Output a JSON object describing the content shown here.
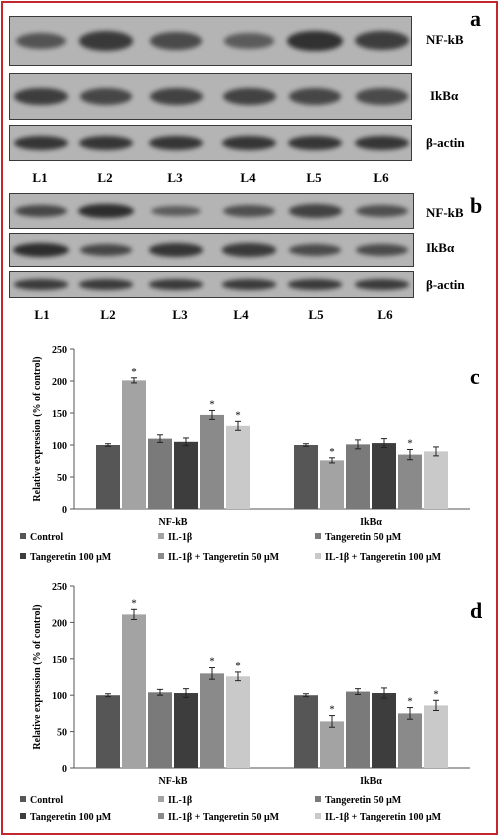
{
  "panel_letters": [
    "a",
    "b",
    "c",
    "d"
  ],
  "blots": {
    "a": {
      "rows": [
        {
          "label": "NF-kB",
          "intensity": [
            0.55,
            0.85,
            0.65,
            0.45,
            0.95,
            0.8
          ]
        },
        {
          "label": "IkBα",
          "intensity": [
            0.8,
            0.7,
            0.75,
            0.75,
            0.7,
            0.65
          ]
        },
        {
          "label": "β-actin",
          "intensity": [
            0.9,
            0.9,
            0.9,
            0.9,
            0.9,
            0.9
          ]
        }
      ],
      "lanes": [
        "L1",
        "L2",
        "L3",
        "L4",
        "L5",
        "L6"
      ]
    },
    "b": {
      "rows": [
        {
          "label": "NF-kB",
          "intensity": [
            0.7,
            1.0,
            0.45,
            0.6,
            0.75,
            0.6
          ]
        },
        {
          "label": "IkBα",
          "intensity": [
            1.0,
            0.7,
            0.9,
            0.85,
            0.65,
            0.65
          ]
        },
        {
          "label": "β-actin",
          "intensity": [
            0.85,
            0.85,
            0.85,
            0.85,
            0.85,
            0.85
          ]
        }
      ],
      "lanes": [
        "L1",
        "L2",
        "L3",
        "L4",
        "L5",
        "L6"
      ]
    }
  },
  "legend_entries": [
    "Control",
    "IL-1β",
    "Tangeretin 50 μM",
    "Tangeretin 100 μM",
    "IL-1β + Tangeretin 50 μM",
    "IL-1β + Tangeretin 100 μM"
  ],
  "colors": [
    "#565656",
    "#a3a3a3",
    "#7a7a7a",
    "#3d3d3d",
    "#8a8a8a",
    "#c9c9c9"
  ],
  "chart_data": [
    {
      "panel": "c",
      "type": "bar",
      "categories": [
        "NF-kB",
        "IkBα"
      ],
      "ylabel": "Relative expression (% of control)",
      "ylim": [
        0,
        250
      ],
      "yticks": [
        0,
        50,
        100,
        150,
        200,
        250
      ],
      "series": [
        {
          "name": "Control",
          "values": [
            100,
            100
          ],
          "errors": [
            2,
            2
          ],
          "significant": [
            false,
            false
          ]
        },
        {
          "name": "IL-1β",
          "values": [
            201,
            76
          ],
          "errors": [
            4,
            4
          ],
          "significant": [
            true,
            true
          ]
        },
        {
          "name": "Tangeretin 50 μM",
          "values": [
            110,
            101
          ],
          "errors": [
            6,
            7
          ],
          "significant": [
            false,
            false
          ]
        },
        {
          "name": "Tangeretin 100 μM",
          "values": [
            105,
            103
          ],
          "errors": [
            6,
            7
          ],
          "significant": [
            false,
            false
          ]
        },
        {
          "name": "IL-1β + Tangeretin 50 μM",
          "values": [
            147,
            85
          ],
          "errors": [
            7,
            8
          ],
          "significant": [
            true,
            true
          ]
        },
        {
          "name": "IL-1β + Tangeretin 100 μM",
          "values": [
            130,
            90
          ],
          "errors": [
            7,
            7
          ],
          "significant": [
            true,
            false
          ]
        }
      ],
      "grid": false,
      "legend": "bottom"
    },
    {
      "panel": "d",
      "type": "bar",
      "categories": [
        "NF-kB",
        "IkBα"
      ],
      "ylabel": "Relative expression (% of control)",
      "ylim": [
        0,
        250
      ],
      "yticks": [
        0,
        50,
        100,
        150,
        200,
        250
      ],
      "series": [
        {
          "name": "Control",
          "values": [
            100,
            100
          ],
          "errors": [
            2,
            2
          ],
          "significant": [
            false,
            false
          ]
        },
        {
          "name": "IL-1β",
          "values": [
            211,
            64
          ],
          "errors": [
            7,
            8
          ],
          "significant": [
            true,
            true
          ]
        },
        {
          "name": "Tangeretin 50 μM",
          "values": [
            104,
            105
          ],
          "errors": [
            4,
            4
          ],
          "significant": [
            false,
            false
          ]
        },
        {
          "name": "Tangeretin 100 μM",
          "values": [
            103,
            103
          ],
          "errors": [
            6,
            7
          ],
          "significant": [
            false,
            false
          ]
        },
        {
          "name": "IL-1β + Tangeretin 50 μM",
          "values": [
            130,
            75
          ],
          "errors": [
            8,
            8
          ],
          "significant": [
            true,
            true
          ]
        },
        {
          "name": "IL-1β + Tangeretin 100 μM",
          "values": [
            126,
            86
          ],
          "errors": [
            6,
            7
          ],
          "significant": [
            true,
            true
          ]
        }
      ],
      "grid": false,
      "legend": "bottom"
    }
  ]
}
